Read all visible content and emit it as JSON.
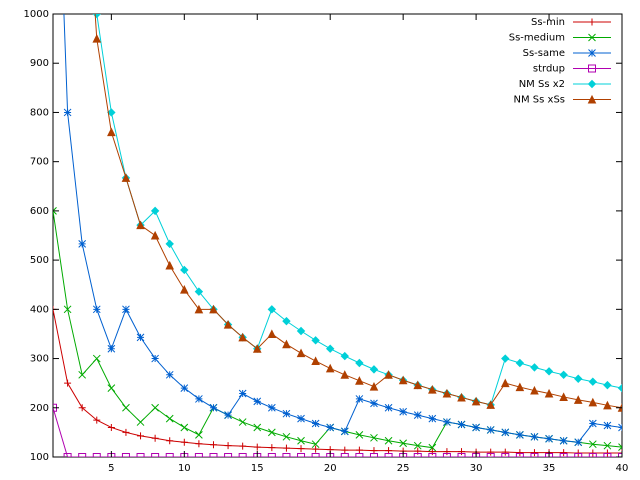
{
  "chart_data": {
    "type": "line",
    "x": [
      1,
      2,
      3,
      4,
      5,
      6,
      7,
      8,
      9,
      10,
      11,
      12,
      13,
      14,
      15,
      16,
      17,
      18,
      19,
      20,
      21,
      22,
      23,
      24,
      25,
      26,
      27,
      28,
      29,
      30,
      31,
      32,
      33,
      34,
      35,
      36,
      37,
      38,
      39,
      40
    ],
    "xlim": [
      1,
      40
    ],
    "ylim": [
      100,
      1000
    ],
    "xticks": [
      5,
      10,
      15,
      20,
      25,
      30,
      35,
      40
    ],
    "yticks": [
      100,
      200,
      300,
      400,
      500,
      600,
      700,
      800,
      900,
      1000
    ],
    "grid": false,
    "legend": "top-right",
    "series": [
      {
        "name": "Ss-min",
        "color": "#cc0000",
        "marker": "plus",
        "values": [
          400,
          250,
          200,
          175,
          160,
          150,
          143,
          138,
          133,
          130,
          127,
          125,
          123,
          122,
          120,
          119,
          118,
          117,
          116,
          115,
          114,
          114,
          113,
          113,
          112,
          112,
          111,
          111,
          111,
          110,
          110,
          110,
          109,
          109,
          109,
          109,
          108,
          108,
          108,
          108
        ]
      },
      {
        "name": "Ss-medium",
        "color": "#00aa00",
        "marker": "cross",
        "values": [
          600,
          400,
          267,
          300,
          240,
          200,
          171,
          200,
          178,
          160,
          145,
          200,
          185,
          171,
          160,
          150,
          141,
          133,
          126,
          160,
          152,
          145,
          139,
          133,
          128,
          123,
          119,
          171,
          166,
          160,
          155,
          150,
          145,
          141,
          137,
          133,
          130,
          126,
          123,
          120
        ]
      },
      {
        "name": "Ss-same",
        "color": "#0060d0",
        "marker": "star",
        "values": [
          1600,
          800,
          533,
          400,
          320,
          400,
          343,
          300,
          267,
          240,
          218,
          200,
          185,
          229,
          213,
          200,
          188,
          178,
          168,
          160,
          152,
          218,
          209,
          200,
          192,
          185,
          178,
          171,
          166,
          160,
          155,
          150,
          145,
          141,
          137,
          133,
          130,
          168,
          164,
          160
        ]
      },
      {
        "name": "strdup",
        "color": "#b000b0",
        "marker": "square",
        "values": [
          200,
          100,
          100,
          100,
          100,
          100,
          100,
          100,
          100,
          100,
          100,
          100,
          100,
          100,
          100,
          100,
          100,
          100,
          100,
          100,
          100,
          100,
          100,
          100,
          100,
          100,
          100,
          100,
          100,
          100,
          100,
          100,
          100,
          100,
          100,
          100,
          100,
          100,
          100,
          100
        ]
      },
      {
        "name": "NM Ss x2",
        "color": "#00d0d8",
        "marker": "diamond",
        "values": [
          null,
          null,
          1333,
          1000,
          800,
          667,
          571,
          600,
          533,
          480,
          436,
          400,
          369,
          343,
          320,
          400,
          376,
          356,
          337,
          320,
          305,
          291,
          278,
          267,
          256,
          246,
          237,
          229,
          221,
          213,
          206,
          300,
          291,
          282,
          274,
          267,
          259,
          253,
          246,
          240
        ]
      },
      {
        "name": "NM Ss xSs",
        "color": "#b04000",
        "marker": "triangle",
        "values": [
          null,
          null,
          1400,
          950,
          760,
          667,
          571,
          550,
          489,
          440,
          400,
          400,
          369,
          343,
          320,
          350,
          329,
          311,
          295,
          280,
          267,
          255,
          243,
          267,
          256,
          246,
          237,
          229,
          221,
          213,
          206,
          250,
          242,
          235,
          229,
          222,
          216,
          211,
          205,
          200
        ]
      }
    ]
  }
}
